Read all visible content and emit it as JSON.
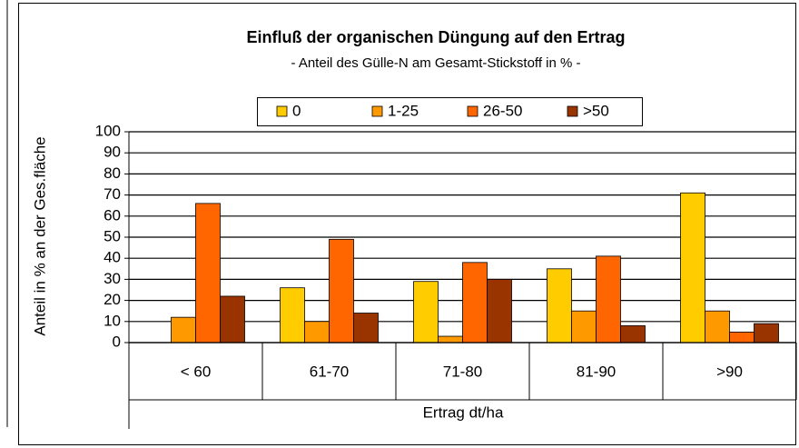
{
  "chart_data": {
    "type": "bar",
    "title": "Einfluß der organischen Düngung auf den Ertrag",
    "subtitle": "- Anteil des Gülle-N am Gesamt-Stickstoff in % -",
    "x_label": "Ertrag dt/ha",
    "y_label": "Anteil in % an der Ges.fläche",
    "categories": [
      "< 60",
      "61-70",
      "71-80",
      "81-90",
      ">90"
    ],
    "series": [
      {
        "name": "0",
        "color": "#ffcc00",
        "values": [
          0,
          26,
          29,
          35,
          71
        ]
      },
      {
        "name": "1-25",
        "color": "#ff9900",
        "values": [
          12,
          10,
          3,
          15,
          15
        ]
      },
      {
        "name": "26-50",
        "color": "#ff6600",
        "values": [
          66,
          49,
          38,
          41,
          5
        ]
      },
      {
        "name": ">50",
        "color": "#993300",
        "values": [
          22,
          14,
          30,
          8,
          9
        ]
      }
    ],
    "ylim": [
      0,
      100
    ],
    "yticks": [
      0,
      10,
      20,
      30,
      40,
      50,
      60,
      70,
      80,
      90,
      100
    ],
    "grid": true,
    "legend": "top"
  }
}
